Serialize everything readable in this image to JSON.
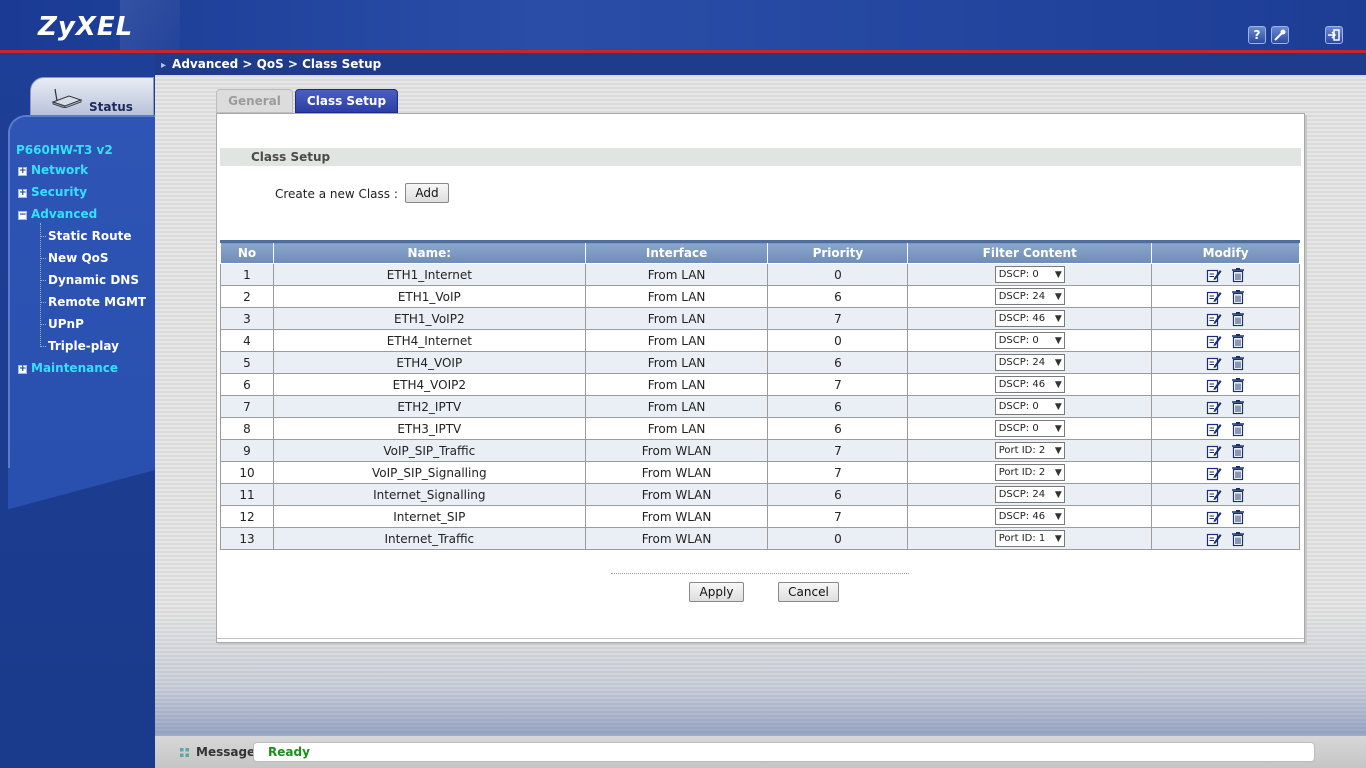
{
  "header": {
    "logo": "ZyXEL",
    "icons": [
      "help-icon",
      "wizard-icon",
      "logout-icon"
    ],
    "icon_glyphs": {
      "help": "?"
    }
  },
  "sidebar": {
    "status_label": "Status",
    "model": "P660HW-T3 v2",
    "menu": [
      {
        "label": "Network",
        "expanded": false
      },
      {
        "label": "Security",
        "expanded": false
      },
      {
        "label": "Advanced",
        "expanded": true
      },
      {
        "label": "Maintenance",
        "expanded": false
      }
    ],
    "advanced_submenu": [
      "Static Route",
      "New QoS",
      "Dynamic DNS",
      "Remote MGMT",
      "UPnP",
      "Triple-play"
    ]
  },
  "breadcrumb": "Advanced > QoS > Class Setup",
  "tabs": [
    {
      "label": "General",
      "active": false
    },
    {
      "label": "Class Setup",
      "active": true
    }
  ],
  "section_title": "Class Setup",
  "create": {
    "label": "Create a new Class :",
    "button": "Add"
  },
  "table": {
    "headers": [
      "No",
      "Name:",
      "Interface",
      "Priority",
      "Filter Content",
      "Modify"
    ],
    "rows": [
      {
        "no": "1",
        "name": "ETH1_Internet",
        "interface": "From LAN",
        "priority": "0",
        "filter": "DSCP: 0"
      },
      {
        "no": "2",
        "name": "ETH1_VoIP",
        "interface": "From LAN",
        "priority": "6",
        "filter": "DSCP: 24"
      },
      {
        "no": "3",
        "name": "ETH1_VoIP2",
        "interface": "From LAN",
        "priority": "7",
        "filter": "DSCP: 46"
      },
      {
        "no": "4",
        "name": "ETH4_Internet",
        "interface": "From LAN",
        "priority": "0",
        "filter": "DSCP: 0"
      },
      {
        "no": "5",
        "name": "ETH4_VOIP",
        "interface": "From LAN",
        "priority": "6",
        "filter": "DSCP: 24"
      },
      {
        "no": "6",
        "name": "ETH4_VOIP2",
        "interface": "From LAN",
        "priority": "7",
        "filter": "DSCP: 46"
      },
      {
        "no": "7",
        "name": "ETH2_IPTV",
        "interface": "From LAN",
        "priority": "6",
        "filter": "DSCP: 0"
      },
      {
        "no": "8",
        "name": "ETH3_IPTV",
        "interface": "From LAN",
        "priority": "6",
        "filter": "DSCP: 0"
      },
      {
        "no": "9",
        "name": "VoIP_SIP_Traffic",
        "interface": "From WLAN",
        "priority": "7",
        "filter": "Port ID: 2"
      },
      {
        "no": "10",
        "name": "VoIP_SIP_Signalling",
        "interface": "From WLAN",
        "priority": "7",
        "filter": "Port ID: 2"
      },
      {
        "no": "11",
        "name": "Internet_Signalling",
        "interface": "From WLAN",
        "priority": "6",
        "filter": "DSCP: 24"
      },
      {
        "no": "12",
        "name": "Internet_SIP",
        "interface": "From WLAN",
        "priority": "7",
        "filter": "DSCP: 46"
      },
      {
        "no": "13",
        "name": "Internet_Traffic",
        "interface": "From WLAN",
        "priority": "0",
        "filter": "Port ID: 1"
      }
    ]
  },
  "buttons": {
    "apply": "Apply",
    "cancel": "Cancel"
  },
  "message": {
    "label": "Message",
    "text": "Ready"
  },
  "colors": {
    "brand_blue": "#1b3a8c",
    "accent_red": "#c8242c",
    "nav_cyan": "#35e0ff",
    "ready_green": "#1c8f1c"
  }
}
